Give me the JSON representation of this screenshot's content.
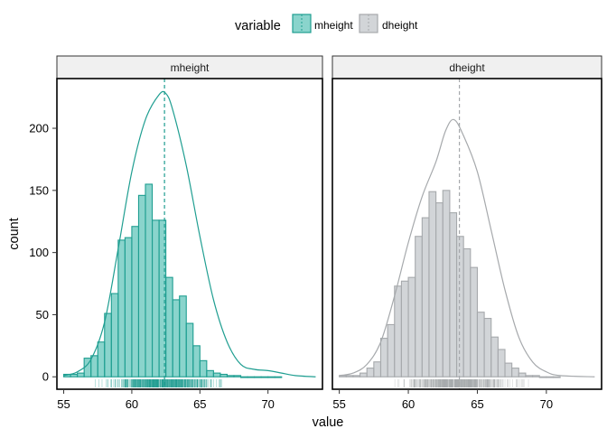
{
  "legend": {
    "title": "variable",
    "items": [
      {
        "label": "mheight",
        "fill": "#2ab0a3",
        "stroke": "#1f9e91"
      },
      {
        "label": "dheight",
        "fill": "#bfc4c8",
        "stroke": "#a3a7ab"
      }
    ]
  },
  "colors": {
    "mheight_fill": "#2ab0a3",
    "mheight_line": "#1f9e91",
    "dheight_fill": "#c3c7cb",
    "dheight_line": "#a6a9ac",
    "strip_bg": "#f0f0f0"
  },
  "chart_data": {
    "type": "bar",
    "xlabel": "value",
    "ylabel": "count",
    "xlim": [
      54.5,
      74
    ],
    "ylim": [
      -10,
      240
    ],
    "xticks": [
      55,
      60,
      65,
      70
    ],
    "yticks": [
      0,
      50,
      100,
      150,
      200
    ],
    "panels": [
      {
        "name": "mheight",
        "bin_starts": [
          55.0,
          55.5,
          56.0,
          56.5,
          57.0,
          57.5,
          58.0,
          58.5,
          59.0,
          59.5,
          60.0,
          60.5,
          61.0,
          61.5,
          62.0,
          62.5,
          63.0,
          63.5,
          64.0,
          64.5,
          65.0,
          65.5,
          66.0,
          66.5,
          67.0,
          67.5,
          68.0,
          68.5,
          69.0,
          69.5,
          70.0,
          70.5
        ],
        "bin_width": 0.5,
        "counts": [
          2,
          2,
          3,
          15,
          17,
          28,
          51,
          67,
          110,
          112,
          121,
          146,
          155,
          126,
          126,
          80,
          62,
          65,
          43,
          25,
          13,
          5,
          3,
          2,
          1,
          1,
          0,
          0,
          0,
          0,
          0,
          0
        ],
        "mean": 62.4,
        "density_curve": [
          [
            55.0,
            1
          ],
          [
            56.0,
            4
          ],
          [
            57.0,
            14
          ],
          [
            58.0,
            44
          ],
          [
            59.0,
            103
          ],
          [
            60.0,
            165
          ],
          [
            61.0,
            207
          ],
          [
            62.0,
            227
          ],
          [
            62.5,
            228
          ],
          [
            63.0,
            215
          ],
          [
            64.0,
            170
          ],
          [
            65.0,
            113
          ],
          [
            66.0,
            62
          ],
          [
            67.0,
            28
          ],
          [
            68.0,
            10
          ],
          [
            69.0,
            6
          ],
          [
            70.0,
            5
          ],
          [
            71.0,
            3
          ],
          [
            72.0,
            1
          ],
          [
            73.5,
            0
          ]
        ]
      },
      {
        "name": "dheight",
        "bin_starts": [
          55.0,
          55.5,
          56.0,
          56.5,
          57.0,
          57.5,
          58.0,
          58.5,
          59.0,
          59.5,
          60.0,
          60.5,
          61.0,
          61.5,
          62.0,
          62.5,
          63.0,
          63.5,
          64.0,
          64.5,
          65.0,
          65.5,
          66.0,
          66.5,
          67.0,
          67.5,
          68.0,
          68.5,
          69.0,
          69.5,
          70.0,
          70.5
        ],
        "bin_width": 0.5,
        "counts": [
          1,
          1,
          1,
          3,
          7,
          12,
          31,
          42,
          73,
          77,
          80,
          113,
          128,
          149,
          140,
          150,
          132,
          113,
          103,
          88,
          52,
          47,
          32,
          22,
          11,
          7,
          3,
          1,
          1,
          0,
          0,
          0
        ],
        "mean": 63.7,
        "density_curve": [
          [
            55.0,
            1
          ],
          [
            56.0,
            3
          ],
          [
            57.0,
            10
          ],
          [
            58.0,
            28
          ],
          [
            59.0,
            65
          ],
          [
            60.0,
            108
          ],
          [
            61.0,
            145
          ],
          [
            62.0,
            173
          ],
          [
            62.7,
            198
          ],
          [
            63.3,
            207
          ],
          [
            64.0,
            194
          ],
          [
            65.0,
            165
          ],
          [
            66.0,
            118
          ],
          [
            67.0,
            70
          ],
          [
            68.0,
            32
          ],
          [
            69.0,
            12
          ],
          [
            70.0,
            4
          ],
          [
            71.0,
            1
          ],
          [
            73.5,
            0
          ]
        ]
      }
    ]
  }
}
